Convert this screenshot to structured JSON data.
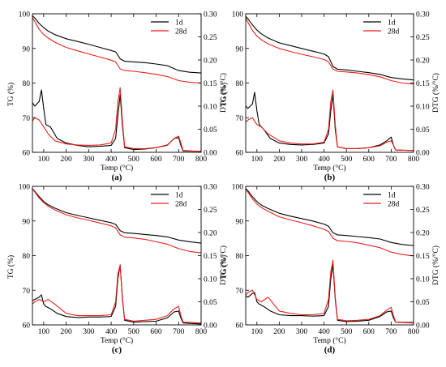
{
  "chart_data": [
    {
      "type": "line",
      "panel_label": "(a)",
      "xlabel": "Temp (°C)",
      "ylabel_left": "TG (%)",
      "ylabel_right": "DTG (%/°C)",
      "xlim": [
        50,
        800
      ],
      "ylim_left": [
        60,
        100
      ],
      "ylim_right": [
        0.0,
        0.3
      ],
      "x_ticks": [
        "100",
        "200",
        "300",
        "400",
        "500",
        "600",
        "700",
        "800"
      ],
      "y_ticks_left": [
        "60",
        "70",
        "80",
        "90",
        "100"
      ],
      "y_ticks_right": [
        "0.00",
        "0.05",
        "0.10",
        "0.15",
        "0.20",
        "0.25",
        "0.30"
      ],
      "legend_position": "top-right",
      "colors": {
        "1d": "#000000",
        "28d": "#e8201c"
      },
      "series": [
        {
          "name": "1d",
          "axis": "left",
          "x": [
            40,
            60,
            80,
            100,
            120,
            150,
            200,
            250,
            300,
            350,
            400,
            420,
            440,
            460,
            500,
            550,
            600,
            650,
            700,
            750,
            800
          ],
          "y": [
            100,
            98.8,
            97.2,
            96.0,
            95.0,
            94.0,
            92.8,
            92.0,
            91.2,
            90.3,
            89.4,
            89.0,
            87.0,
            86.3,
            86.1,
            85.9,
            85.5,
            85.0,
            83.6,
            83.1,
            82.9
          ]
        },
        {
          "name": "28d",
          "axis": "left",
          "x": [
            40,
            60,
            80,
            100,
            120,
            150,
            200,
            250,
            300,
            350,
            400,
            420,
            440,
            460,
            500,
            550,
            600,
            650,
            700,
            750,
            800
          ],
          "y": [
            100,
            97.8,
            95.5,
            94.0,
            93.0,
            91.8,
            90.3,
            89.3,
            88.4,
            87.5,
            86.6,
            86.1,
            84.1,
            83.6,
            83.4,
            83.0,
            82.5,
            81.9,
            80.7,
            80.2,
            80.0
          ]
        },
        {
          "name": "1d",
          "axis": "right",
          "x": [
            40,
            60,
            80,
            90,
            100,
            110,
            130,
            160,
            200,
            250,
            300,
            350,
            400,
            420,
            430,
            440,
            450,
            460,
            500,
            550,
            600,
            650,
            680,
            700,
            710,
            720,
            800
          ],
          "y": [
            0.115,
            0.1,
            0.11,
            0.135,
            0.095,
            0.06,
            0.055,
            0.03,
            0.02,
            0.015,
            0.012,
            0.013,
            0.015,
            0.03,
            0.08,
            0.125,
            0.06,
            0.01,
            0.006,
            0.007,
            0.01,
            0.016,
            0.03,
            0.032,
            0.015,
            0.003,
            0.002
          ]
        },
        {
          "name": "28d",
          "axis": "right",
          "x": [
            40,
            60,
            80,
            100,
            120,
            150,
            200,
            250,
            300,
            350,
            400,
            420,
            430,
            440,
            450,
            460,
            500,
            550,
            600,
            650,
            680,
            700,
            710,
            720,
            800
          ],
          "y": [
            0.06,
            0.075,
            0.07,
            0.055,
            0.04,
            0.025,
            0.018,
            0.016,
            0.015,
            0.016,
            0.02,
            0.05,
            0.11,
            0.14,
            0.07,
            0.012,
            0.008,
            0.008,
            0.01,
            0.015,
            0.03,
            0.035,
            0.02,
            0.004,
            0.002
          ]
        }
      ]
    },
    {
      "type": "line",
      "panel_label": "(b)",
      "xlabel": "Temp (°C)",
      "ylabel_left": "TG (%)",
      "ylabel_right": "DTG (%/°C)",
      "xlim": [
        50,
        800
      ],
      "ylim_left": [
        60,
        100
      ],
      "ylim_right": [
        0.0,
        0.3
      ],
      "x_ticks": [
        "100",
        "200",
        "300",
        "400",
        "500",
        "600",
        "700",
        "800"
      ],
      "y_ticks_left": [
        "60",
        "70",
        "80",
        "90",
        "100"
      ],
      "y_ticks_right": [
        "0.00",
        "0.05",
        "0.10",
        "0.15",
        "0.20",
        "0.25",
        "0.30"
      ],
      "legend_position": "top-right",
      "colors": {
        "1d": "#000000",
        "28d": "#e8201c"
      },
      "series": [
        {
          "name": "1d",
          "axis": "left",
          "x": [
            40,
            60,
            80,
            100,
            120,
            150,
            200,
            250,
            300,
            350,
            400,
            420,
            440,
            460,
            500,
            550,
            600,
            650,
            700,
            750,
            800
          ],
          "y": [
            100,
            98.5,
            96.8,
            95.3,
            94.2,
            93.0,
            91.6,
            90.8,
            90.0,
            89.2,
            88.4,
            87.6,
            84.8,
            84.0,
            83.8,
            83.4,
            83.0,
            82.5,
            81.6,
            81.2,
            80.9
          ]
        },
        {
          "name": "28d",
          "axis": "left",
          "x": [
            40,
            60,
            80,
            100,
            120,
            150,
            200,
            250,
            300,
            350,
            400,
            420,
            440,
            460,
            500,
            550,
            600,
            650,
            700,
            750,
            800
          ],
          "y": [
            100,
            97.5,
            95.2,
            93.6,
            92.5,
            91.3,
            90.0,
            89.1,
            88.3,
            87.6,
            86.8,
            86.1,
            84.0,
            83.4,
            83.2,
            82.9,
            82.4,
            81.8,
            80.7,
            80.0,
            79.7
          ]
        },
        {
          "name": "1d",
          "axis": "right",
          "x": [
            40,
            60,
            80,
            90,
            100,
            110,
            130,
            160,
            200,
            250,
            300,
            350,
            400,
            420,
            430,
            440,
            450,
            460,
            500,
            550,
            600,
            650,
            680,
            700,
            710,
            720,
            800
          ],
          "y": [
            0.105,
            0.095,
            0.105,
            0.13,
            0.09,
            0.06,
            0.05,
            0.03,
            0.02,
            0.017,
            0.016,
            0.017,
            0.02,
            0.04,
            0.09,
            0.125,
            0.05,
            0.012,
            0.008,
            0.008,
            0.01,
            0.016,
            0.025,
            0.033,
            0.015,
            0.005,
            0.004
          ]
        },
        {
          "name": "28d",
          "axis": "right",
          "x": [
            40,
            60,
            80,
            100,
            120,
            150,
            200,
            250,
            300,
            350,
            400,
            420,
            430,
            440,
            450,
            460,
            500,
            550,
            600,
            650,
            680,
            700,
            710,
            720,
            800
          ],
          "y": [
            0.06,
            0.07,
            0.075,
            0.06,
            0.055,
            0.04,
            0.025,
            0.02,
            0.018,
            0.018,
            0.022,
            0.05,
            0.11,
            0.135,
            0.06,
            0.012,
            0.008,
            0.008,
            0.01,
            0.014,
            0.022,
            0.025,
            0.015,
            0.005,
            0.004
          ]
        }
      ]
    },
    {
      "type": "line",
      "panel_label": "(c)",
      "xlabel": "Temp (°C)",
      "ylabel_left": "TG (%)",
      "ylabel_right": "DTG (%/°C)",
      "xlim": [
        50,
        800
      ],
      "ylim_left": [
        60,
        100
      ],
      "ylim_right": [
        0.0,
        0.3
      ],
      "x_ticks": [
        "100",
        "200",
        "300",
        "400",
        "500",
        "600",
        "700",
        "800"
      ],
      "y_ticks_left": [
        "60",
        "70",
        "80",
        "90",
        "100"
      ],
      "y_ticks_right": [
        "0.00",
        "0.05",
        "0.10",
        "0.15",
        "0.20",
        "0.25",
        "0.30"
      ],
      "legend_position": "top-right",
      "colors": {
        "1d": "#000000",
        "28d": "#e8201c"
      },
      "series": [
        {
          "name": "1d",
          "axis": "left",
          "x": [
            40,
            60,
            80,
            100,
            120,
            150,
            200,
            250,
            300,
            350,
            400,
            420,
            440,
            460,
            500,
            550,
            600,
            650,
            700,
            750,
            800
          ],
          "y": [
            100,
            98.6,
            97.0,
            95.6,
            94.7,
            93.7,
            92.4,
            91.6,
            90.9,
            90.2,
            89.5,
            89.0,
            87.2,
            86.6,
            86.4,
            86.1,
            85.8,
            85.4,
            84.5,
            84.0,
            83.6
          ]
        },
        {
          "name": "28d",
          "axis": "left",
          "x": [
            40,
            60,
            80,
            100,
            120,
            150,
            200,
            250,
            300,
            350,
            400,
            420,
            440,
            460,
            500,
            550,
            600,
            650,
            700,
            750,
            800
          ],
          "y": [
            100,
            98.4,
            96.6,
            95.3,
            94.3,
            93.2,
            91.8,
            90.9,
            90.2,
            89.4,
            88.6,
            88.0,
            86.0,
            85.3,
            85.1,
            84.7,
            84.0,
            83.3,
            82.0,
            81.2,
            80.8
          ]
        },
        {
          "name": "1d",
          "axis": "right",
          "x": [
            40,
            60,
            80,
            90,
            100,
            110,
            130,
            160,
            200,
            250,
            300,
            350,
            400,
            420,
            430,
            440,
            450,
            460,
            500,
            550,
            600,
            650,
            680,
            700,
            710,
            720,
            800
          ],
          "y": [
            0.05,
            0.055,
            0.06,
            0.065,
            0.045,
            0.04,
            0.035,
            0.025,
            0.018,
            0.016,
            0.017,
            0.017,
            0.018,
            0.04,
            0.1,
            0.13,
            0.06,
            0.01,
            0.006,
            0.007,
            0.008,
            0.015,
            0.028,
            0.03,
            0.015,
            0.004,
            0.002
          ]
        },
        {
          "name": "28d",
          "axis": "right",
          "x": [
            40,
            60,
            80,
            100,
            120,
            150,
            200,
            250,
            300,
            350,
            400,
            420,
            430,
            440,
            450,
            460,
            500,
            550,
            600,
            650,
            680,
            700,
            710,
            720,
            800
          ],
          "y": [
            0.04,
            0.05,
            0.055,
            0.05,
            0.055,
            0.045,
            0.025,
            0.02,
            0.02,
            0.02,
            0.022,
            0.05,
            0.11,
            0.13,
            0.055,
            0.012,
            0.008,
            0.01,
            0.012,
            0.02,
            0.035,
            0.04,
            0.02,
            0.006,
            0.004
          ]
        }
      ]
    },
    {
      "type": "line",
      "panel_label": "(d)",
      "xlabel": "Temp (°C)",
      "ylabel_left": "TG (%)",
      "ylabel_right": "DTG (%/°C)",
      "xlim": [
        50,
        800
      ],
      "ylim_left": [
        60,
        100
      ],
      "ylim_right": [
        0.0,
        0.3
      ],
      "x_ticks": [
        "100",
        "200",
        "300",
        "400",
        "500",
        "600",
        "700",
        "800"
      ],
      "y_ticks_left": [
        "60",
        "70",
        "80",
        "90",
        "100"
      ],
      "y_ticks_right": [
        "0.00",
        "0.05",
        "0.10",
        "0.15",
        "0.20",
        "0.25",
        "0.30"
      ],
      "legend_position": "top-right",
      "colors": {
        "1d": "#000000",
        "28d": "#e8201c"
      },
      "series": [
        {
          "name": "1d",
          "axis": "left",
          "x": [
            40,
            60,
            80,
            100,
            120,
            150,
            200,
            250,
            300,
            350,
            400,
            420,
            440,
            460,
            500,
            550,
            600,
            650,
            700,
            750,
            800
          ],
          "y": [
            100,
            98.7,
            97.0,
            95.6,
            94.6,
            93.6,
            92.2,
            91.4,
            90.7,
            90.0,
            89.1,
            88.5,
            86.6,
            86.0,
            85.8,
            85.5,
            85.2,
            84.8,
            83.8,
            83.2,
            82.9
          ]
        },
        {
          "name": "28d",
          "axis": "left",
          "x": [
            40,
            60,
            80,
            100,
            120,
            150,
            200,
            250,
            300,
            350,
            400,
            420,
            440,
            460,
            500,
            550,
            600,
            650,
            700,
            750,
            800
          ],
          "y": [
            100,
            98.3,
            96.4,
            94.9,
            93.9,
            92.8,
            91.2,
            90.3,
            89.5,
            88.6,
            87.6,
            87.0,
            85.0,
            84.3,
            84.1,
            83.7,
            83.0,
            82.3,
            81.0,
            80.3,
            79.9
          ]
        },
        {
          "name": "1d",
          "axis": "right",
          "x": [
            40,
            60,
            80,
            90,
            100,
            110,
            130,
            160,
            200,
            250,
            300,
            350,
            400,
            420,
            430,
            440,
            450,
            460,
            500,
            550,
            600,
            650,
            680,
            700,
            710,
            720,
            800
          ],
          "y": [
            0.065,
            0.06,
            0.068,
            0.07,
            0.05,
            0.045,
            0.04,
            0.03,
            0.022,
            0.02,
            0.02,
            0.019,
            0.02,
            0.04,
            0.1,
            0.13,
            0.055,
            0.01,
            0.007,
            0.008,
            0.01,
            0.018,
            0.028,
            0.03,
            0.015,
            0.006,
            0.005
          ]
        },
        {
          "name": "28d",
          "axis": "right",
          "x": [
            40,
            60,
            80,
            100,
            120,
            150,
            200,
            250,
            300,
            350,
            400,
            420,
            430,
            440,
            450,
            460,
            500,
            550,
            600,
            650,
            680,
            700,
            710,
            720,
            800
          ],
          "y": [
            0.06,
            0.07,
            0.075,
            0.055,
            0.05,
            0.06,
            0.03,
            0.025,
            0.022,
            0.022,
            0.025,
            0.055,
            0.115,
            0.14,
            0.06,
            0.012,
            0.009,
            0.01,
            0.012,
            0.02,
            0.032,
            0.038,
            0.02,
            0.006,
            0.004
          ]
        }
      ]
    }
  ]
}
